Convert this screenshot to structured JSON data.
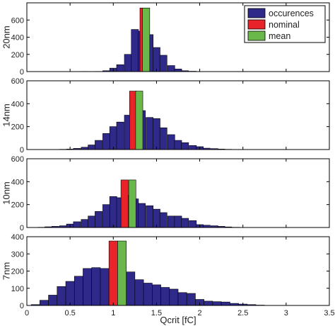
{
  "colors": {
    "occurrences": "#2f2a8a",
    "nominal": "#e8232a",
    "mean": "#6ab84a",
    "axis": "#000000",
    "gridline": "#777777",
    "background": "#ffffff"
  },
  "legend": {
    "placement": "top-right",
    "entries": [
      {
        "label": "occurences",
        "color": "#2f2a8a"
      },
      {
        "label": "nominal",
        "color": "#e8232a"
      },
      {
        "label": "mean",
        "color": "#6ab84a"
      }
    ]
  },
  "xlabel": "Qcrit [fC]",
  "chart_data": [
    {
      "type": "bar",
      "ylabel": "20nm",
      "xlim": [
        0,
        3.5
      ],
      "ylim": [
        0,
        800
      ],
      "yticks": [
        0,
        200,
        400,
        600
      ],
      "bin_width": 0.083,
      "x": [
        0.67,
        0.75,
        0.83,
        0.92,
        1.0,
        1.08,
        1.17,
        1.25,
        1.33,
        1.42,
        1.5,
        1.58,
        1.67,
        1.75,
        1.83,
        1.92
      ],
      "values": [
        2,
        0,
        2,
        10,
        40,
        80,
        200,
        490,
        470,
        430,
        280,
        190,
        70,
        30,
        10,
        4
      ],
      "nominal": {
        "x": 1.35,
        "value": 740
      },
      "mean": {
        "x": 1.38,
        "value": 740
      },
      "grid": false
    },
    {
      "type": "bar",
      "ylabel": "14nm",
      "xlim": [
        0,
        3.5
      ],
      "ylim": [
        0,
        600
      ],
      "yticks": [
        0,
        200,
        400,
        600
      ],
      "bin_width": 0.083,
      "x": [
        0.42,
        0.5,
        0.58,
        0.67,
        0.75,
        0.83,
        0.92,
        1.0,
        1.08,
        1.17,
        1.25,
        1.33,
        1.42,
        1.5,
        1.58,
        1.67,
        1.75,
        1.83,
        1.92,
        2.0,
        2.08,
        2.17,
        2.25,
        2.33
      ],
      "values": [
        2,
        4,
        10,
        20,
        40,
        80,
        140,
        200,
        240,
        300,
        320,
        340,
        280,
        270,
        190,
        130,
        80,
        60,
        35,
        25,
        12,
        8,
        4,
        2
      ],
      "nominal": {
        "x": 1.23,
        "value": 510
      },
      "mean": {
        "x": 1.3,
        "value": 510
      },
      "grid": false
    },
    {
      "type": "bar",
      "ylabel": "10nm",
      "xlim": [
        0,
        3.5
      ],
      "ylim": [
        0,
        600
      ],
      "yticks": [
        0,
        200,
        400,
        600
      ],
      "bin_width": 0.083,
      "x": [
        0.17,
        0.25,
        0.33,
        0.42,
        0.5,
        0.58,
        0.67,
        0.75,
        0.83,
        0.92,
        1.0,
        1.08,
        1.17,
        1.25,
        1.33,
        1.42,
        1.5,
        1.58,
        1.67,
        1.75,
        1.83,
        1.92,
        2.0,
        2.08,
        2.17,
        2.25,
        2.33,
        2.42,
        2.5,
        2.58
      ],
      "values": [
        2,
        6,
        10,
        15,
        30,
        50,
        70,
        100,
        140,
        200,
        270,
        260,
        280,
        250,
        210,
        190,
        160,
        130,
        100,
        100,
        80,
        60,
        25,
        20,
        15,
        10,
        5,
        2,
        1,
        0
      ],
      "nominal": {
        "x": 1.13,
        "value": 415
      },
      "mean": {
        "x": 1.22,
        "value": 415
      },
      "grid": false
    },
    {
      "type": "bar",
      "ylabel": "7nm",
      "xlim": [
        0,
        3.5
      ],
      "ylim": [
        0,
        400
      ],
      "yticks": [
        0,
        100,
        200,
        300,
        400
      ],
      "bin_width": 0.1,
      "x": [
        0.1,
        0.2,
        0.3,
        0.4,
        0.5,
        0.6,
        0.7,
        0.8,
        0.9,
        1.0,
        1.1,
        1.2,
        1.3,
        1.4,
        1.5,
        1.6,
        1.7,
        1.8,
        1.9,
        2.0,
        2.1,
        2.2,
        2.3,
        2.4,
        2.5,
        2.6,
        2.7
      ],
      "values": [
        5,
        30,
        60,
        110,
        140,
        170,
        215,
        220,
        215,
        190,
        200,
        195,
        150,
        130,
        120,
        105,
        95,
        75,
        70,
        35,
        25,
        22,
        20,
        12,
        8,
        5,
        2
      ],
      "nominal": {
        "x": 1.0,
        "value": 375
      },
      "mean": {
        "x": 1.1,
        "value": 375
      },
      "grid": false
    }
  ],
  "xaxis": {
    "ticks": [
      0,
      0.5,
      1,
      1.5,
      2,
      2.5,
      3,
      3.5
    ],
    "tick_labels": [
      "0",
      "0.5",
      "1",
      "1.5",
      "2",
      "2.5",
      "3",
      "3.5"
    ]
  }
}
